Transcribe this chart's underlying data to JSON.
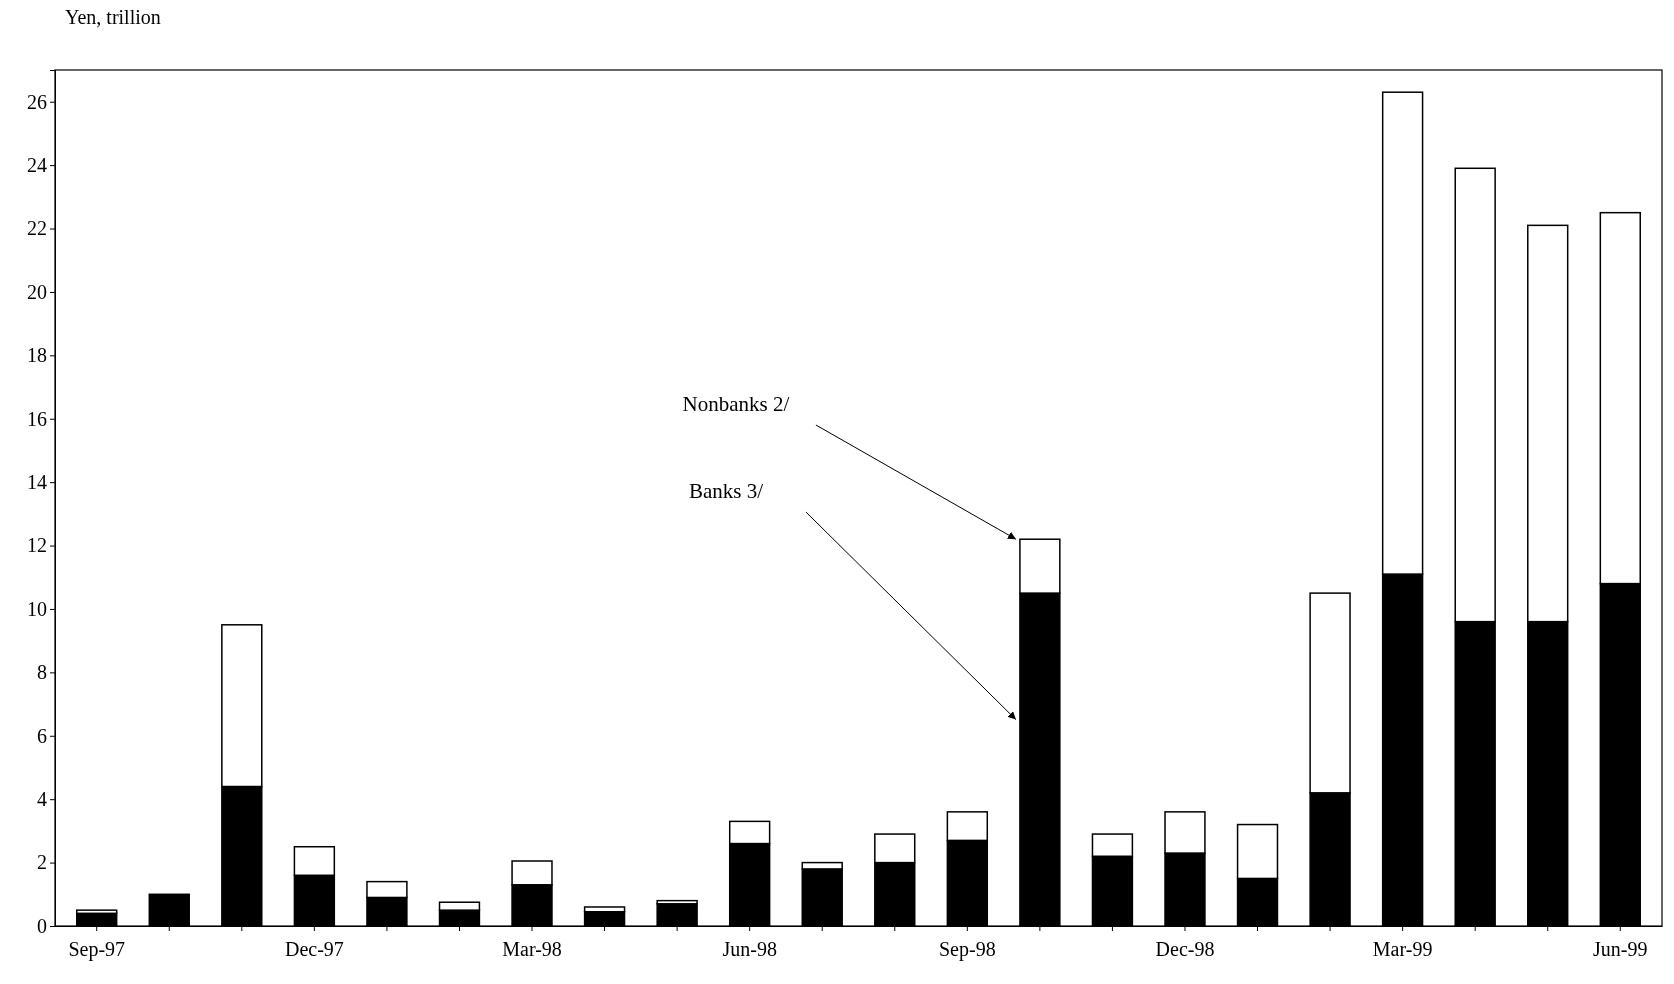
{
  "chart_data": {
    "type": "bar",
    "ylabel": "Yen, trillion",
    "stacked": true,
    "grid": false,
    "annotations": [
      "Nonbanks 2/",
      "Banks 3/"
    ],
    "categories": [
      "Sep-97",
      null,
      null,
      "Dec-97",
      null,
      null,
      "Mar-98",
      null,
      null,
      "Jun-98",
      null,
      null,
      "Sep-98",
      null,
      null,
      "Dec-98",
      null,
      null,
      "Mar-99",
      null,
      null,
      "Jun-99"
    ],
    "ylim": [
      0,
      27
    ],
    "yticks": [
      0,
      2,
      4,
      6,
      8,
      10,
      12,
      14,
      16,
      18,
      20,
      22,
      24,
      26
    ],
    "series": [
      {
        "color": "#000000",
        "values": [
          0.4,
          1.0,
          4.4,
          1.6,
          0.9,
          0.5,
          1.3,
          0.45,
          0.7,
          2.6,
          1.8,
          2.0,
          2.7,
          10.5,
          2.2,
          2.3,
          1.5,
          4.2,
          11.1,
          9.6,
          9.6,
          10.8
        ]
      },
      {
        "color": "#ffffff",
        "values": [
          0.1,
          0,
          5.1,
          0.9,
          0.5,
          0.25,
          0.75,
          0.15,
          0.1,
          0.7,
          0.2,
          0.9,
          0.9,
          1.7,
          0.7,
          1.3,
          1.7,
          6.3,
          15.2,
          14.3,
          12.5,
          11.7
        ]
      }
    ]
  }
}
